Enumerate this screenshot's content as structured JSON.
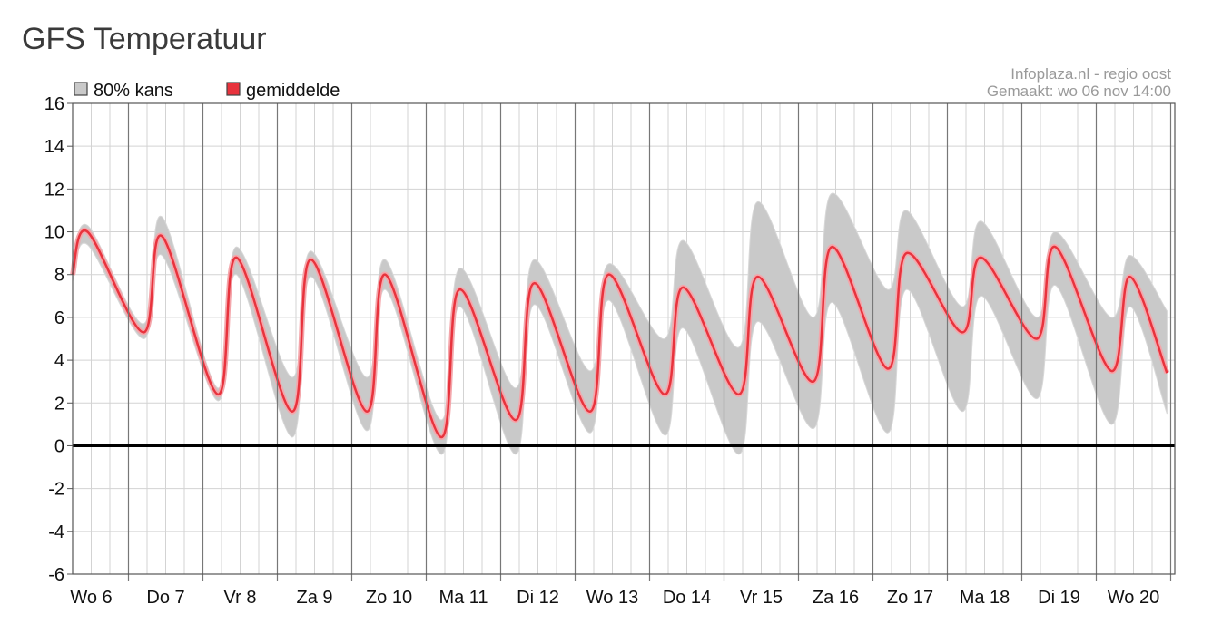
{
  "page": {
    "title": "GFS Temperatuur"
  },
  "credit": {
    "line1": "Infoplaza.nl - regio oost",
    "line2": "Gemaakt: wo 06 nov 14:00"
  },
  "colors": {
    "band": "#c9c9c9",
    "band_edge": "#d8d8d8",
    "mean": "#e8333d",
    "mean_halo": "#f4a6ab",
    "grid": "#d3d3d3",
    "day_line": "#777777",
    "zero_line": "#000000"
  },
  "chart_data": {
    "type": "area",
    "ylim": [
      -6,
      16
    ],
    "yticks": [
      16,
      14,
      12,
      10,
      8,
      6,
      4,
      2,
      0,
      -2,
      -4,
      -6
    ],
    "day_labels": [
      "Wo 6",
      "Do 7",
      "Vr 8",
      "Za 9",
      "Zo 10",
      "Ma 11",
      "Di 12",
      "Wo 13",
      "Do 14",
      "Vr 15",
      "Za 16",
      "Zo 17",
      "Ma 18",
      "Di 19",
      "Wo 20"
    ],
    "grid": true,
    "legend": {
      "position": "top-left"
    },
    "series": [
      {
        "name": "gemiddelde",
        "kind": "line",
        "x_days": [
          0,
          0.2,
          0.95,
          1.2,
          1.95,
          2.2,
          2.95,
          3.2,
          3.95,
          4.2,
          4.95,
          5.2,
          5.95,
          6.2,
          6.95,
          7.2,
          7.95,
          8.2,
          8.95,
          9.2,
          9.95,
          10.2,
          10.95,
          11.2,
          11.95,
          12.2,
          12.95,
          13.2,
          13.95,
          14.2,
          14.7
        ],
        "values": [
          8.0,
          10.0,
          5.3,
          9.8,
          2.4,
          8.8,
          1.6,
          8.7,
          1.6,
          8.0,
          0.4,
          7.3,
          1.2,
          7.6,
          1.6,
          8.0,
          2.4,
          7.4,
          2.4,
          7.9,
          3.0,
          9.3,
          3.6,
          9.0,
          5.3,
          8.8,
          5.0,
          9.3,
          3.5,
          7.9,
          3.4
        ]
      },
      {
        "name": "80% kans",
        "kind": "band",
        "x_days": [
          0,
          0.2,
          0.95,
          1.2,
          1.95,
          2.2,
          2.95,
          3.2,
          3.95,
          4.2,
          4.95,
          5.2,
          5.95,
          6.2,
          6.95,
          7.2,
          7.95,
          8.2,
          8.95,
          9.2,
          9.95,
          10.2,
          10.95,
          11.2,
          11.95,
          12.2,
          12.95,
          13.2,
          13.95,
          14.2,
          14.7
        ],
        "upper": [
          8.2,
          10.3,
          5.7,
          10.7,
          2.7,
          9.3,
          3.2,
          9.1,
          3.2,
          8.7,
          1.2,
          8.3,
          2.7,
          8.7,
          3.5,
          8.5,
          5.0,
          9.6,
          4.6,
          11.4,
          6.0,
          11.8,
          7.3,
          11.0,
          6.5,
          10.5,
          6.0,
          10.0,
          6.0,
          8.9,
          6.3
        ],
        "lower": [
          7.7,
          9.4,
          5.0,
          8.9,
          2.1,
          8.0,
          0.4,
          7.9,
          0.7,
          7.3,
          -0.4,
          6.5,
          -0.4,
          6.6,
          0.6,
          6.8,
          0.5,
          5.5,
          -0.4,
          5.8,
          0.8,
          6.7,
          0.6,
          7.3,
          1.6,
          7.0,
          2.2,
          7.5,
          1.0,
          6.5,
          1.5
        ]
      }
    ]
  }
}
